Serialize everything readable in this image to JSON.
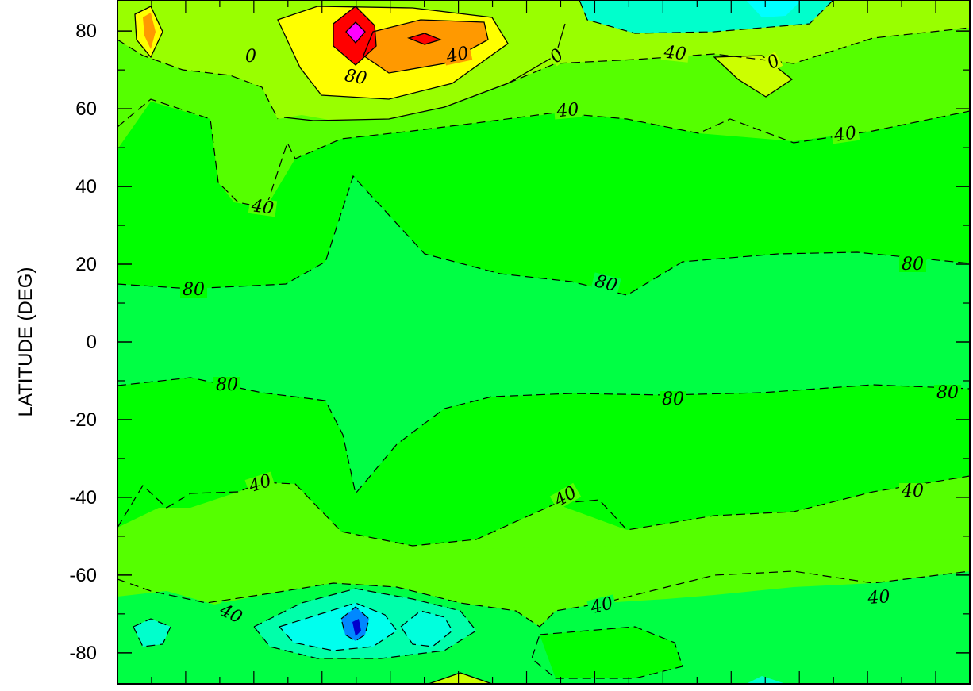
{
  "chart_data": {
    "type": "contour",
    "ylabel": "LATITUDE (DEG)",
    "xlabel": "",
    "ylim": [
      -88,
      88
    ],
    "y_ticks": [
      80,
      60,
      40,
      20,
      0,
      -20,
      -40,
      -60,
      -80
    ],
    "y_tick_labels": [
      "80",
      "60",
      "40",
      "20",
      "0",
      "-20",
      "-40",
      "-60",
      "-80"
    ],
    "contour_labels": [
      {
        "text": "0",
        "lat": 73
      },
      {
        "text": "40",
        "lat": 74
      },
      {
        "text": "80",
        "lat": 69
      },
      {
        "text": "0",
        "lat": 74
      },
      {
        "text": "40",
        "lat": 75
      },
      {
        "text": "0",
        "lat": 73
      },
      {
        "text": "40",
        "lat": 60
      },
      {
        "text": "40",
        "lat": 54
      },
      {
        "text": "40",
        "lat": 35
      },
      {
        "text": "80",
        "lat": 15
      },
      {
        "text": "80",
        "lat": 15
      },
      {
        "text": "80",
        "lat": 21
      },
      {
        "text": "80",
        "lat": -10
      },
      {
        "text": "80",
        "lat": -13
      },
      {
        "text": "80",
        "lat": -12
      },
      {
        "text": "40",
        "lat": -35
      },
      {
        "text": "40",
        "lat": -38
      },
      {
        "text": "40",
        "lat": -37
      },
      {
        "text": "40",
        "lat": -67
      },
      {
        "text": "40",
        "lat": -66
      },
      {
        "text": "40",
        "lat": -63
      }
    ],
    "color_scale": [
      "#0000cc",
      "#0066ff",
      "#00ffff",
      "#00ff99",
      "#00ff44",
      "#00ff00",
      "#44ff00",
      "#99ff00",
      "#ffff00",
      "#ff9900",
      "#ff0000",
      "#ff00ff"
    ]
  }
}
